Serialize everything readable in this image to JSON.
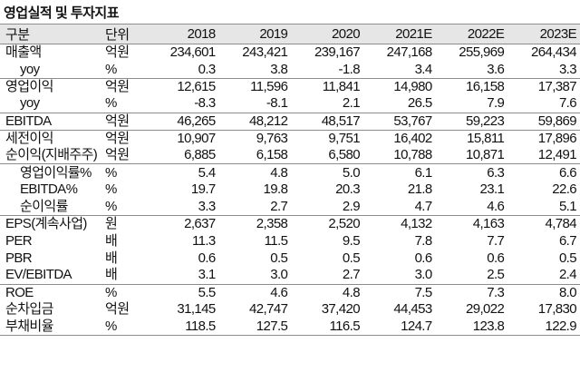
{
  "title": "영업실적 및 투자지표",
  "header": {
    "label": "구분",
    "unit": "단위",
    "years": [
      "2018",
      "2019",
      "2020",
      "2021E",
      "2022E",
      "2023E"
    ]
  },
  "rows": [
    {
      "label": "매출액",
      "unit": "억원",
      "values": [
        "234,601",
        "243,421",
        "239,167",
        "247,168",
        "255,969",
        "264,434"
      ],
      "sep": true
    },
    {
      "label": "yoy",
      "unit": "%",
      "values": [
        "0.3",
        "3.8",
        "-1.8",
        "3.4",
        "3.6",
        "3.3"
      ],
      "indent": true
    },
    {
      "label": "영업이익",
      "unit": "억원",
      "values": [
        "12,615",
        "11,596",
        "11,841",
        "14,980",
        "16,158",
        "17,387"
      ],
      "sep": true
    },
    {
      "label": "yoy",
      "unit": "%",
      "values": [
        "-8.3",
        "-8.1",
        "2.1",
        "26.5",
        "7.9",
        "7.6"
      ],
      "indent": true
    },
    {
      "label": "EBITDA",
      "unit": "억원",
      "values": [
        "46,265",
        "48,212",
        "48,517",
        "53,767",
        "59,223",
        "59,869"
      ],
      "sep": true
    },
    {
      "label": "세전이익",
      "unit": "억원",
      "values": [
        "10,907",
        "9,763",
        "9,751",
        "16,402",
        "15,811",
        "17,896"
      ],
      "sep": true
    },
    {
      "label": "순이익(지배주주)",
      "unit": "억원",
      "values": [
        "6,885",
        "6,158",
        "6,580",
        "10,788",
        "10,871",
        "12,491"
      ]
    },
    {
      "label": "영업이익률%",
      "unit": "%",
      "values": [
        "5.4",
        "4.8",
        "5.0",
        "6.1",
        "6.3",
        "6.6"
      ],
      "indent": true,
      "sep": true
    },
    {
      "label": "EBITDA%",
      "unit": "%",
      "values": [
        "19.7",
        "19.8",
        "20.3",
        "21.8",
        "23.1",
        "22.6"
      ],
      "indent": true
    },
    {
      "label": "순이익률",
      "unit": "%",
      "values": [
        "3.3",
        "2.7",
        "2.9",
        "4.7",
        "4.6",
        "5.1"
      ],
      "indent": true
    },
    {
      "label": "EPS(계속사업)",
      "unit": "원",
      "values": [
        "2,637",
        "2,358",
        "2,520",
        "4,132",
        "4,163",
        "4,784"
      ],
      "sep": true
    },
    {
      "label": "PER",
      "unit": "배",
      "values": [
        "11.3",
        "11.5",
        "9.5",
        "7.8",
        "7.7",
        "6.7"
      ]
    },
    {
      "label": "PBR",
      "unit": "배",
      "values": [
        "0.6",
        "0.5",
        "0.5",
        "0.6",
        "0.6",
        "0.5"
      ]
    },
    {
      "label": "EV/EBITDA",
      "unit": "배",
      "values": [
        "3.1",
        "3.0",
        "2.7",
        "3.0",
        "2.5",
        "2.4"
      ]
    },
    {
      "label": "ROE",
      "unit": "%",
      "values": [
        "5.5",
        "4.6",
        "4.8",
        "7.5",
        "7.3",
        "8.0"
      ],
      "sep": true
    },
    {
      "label": "순차입금",
      "unit": "억원",
      "values": [
        "31,145",
        "42,747",
        "37,420",
        "44,453",
        "29,022",
        "17,830"
      ]
    },
    {
      "label": "부채비율",
      "unit": "%",
      "values": [
        "118.5",
        "127.5",
        "116.5",
        "124.7",
        "123.8",
        "122.9"
      ]
    }
  ]
}
